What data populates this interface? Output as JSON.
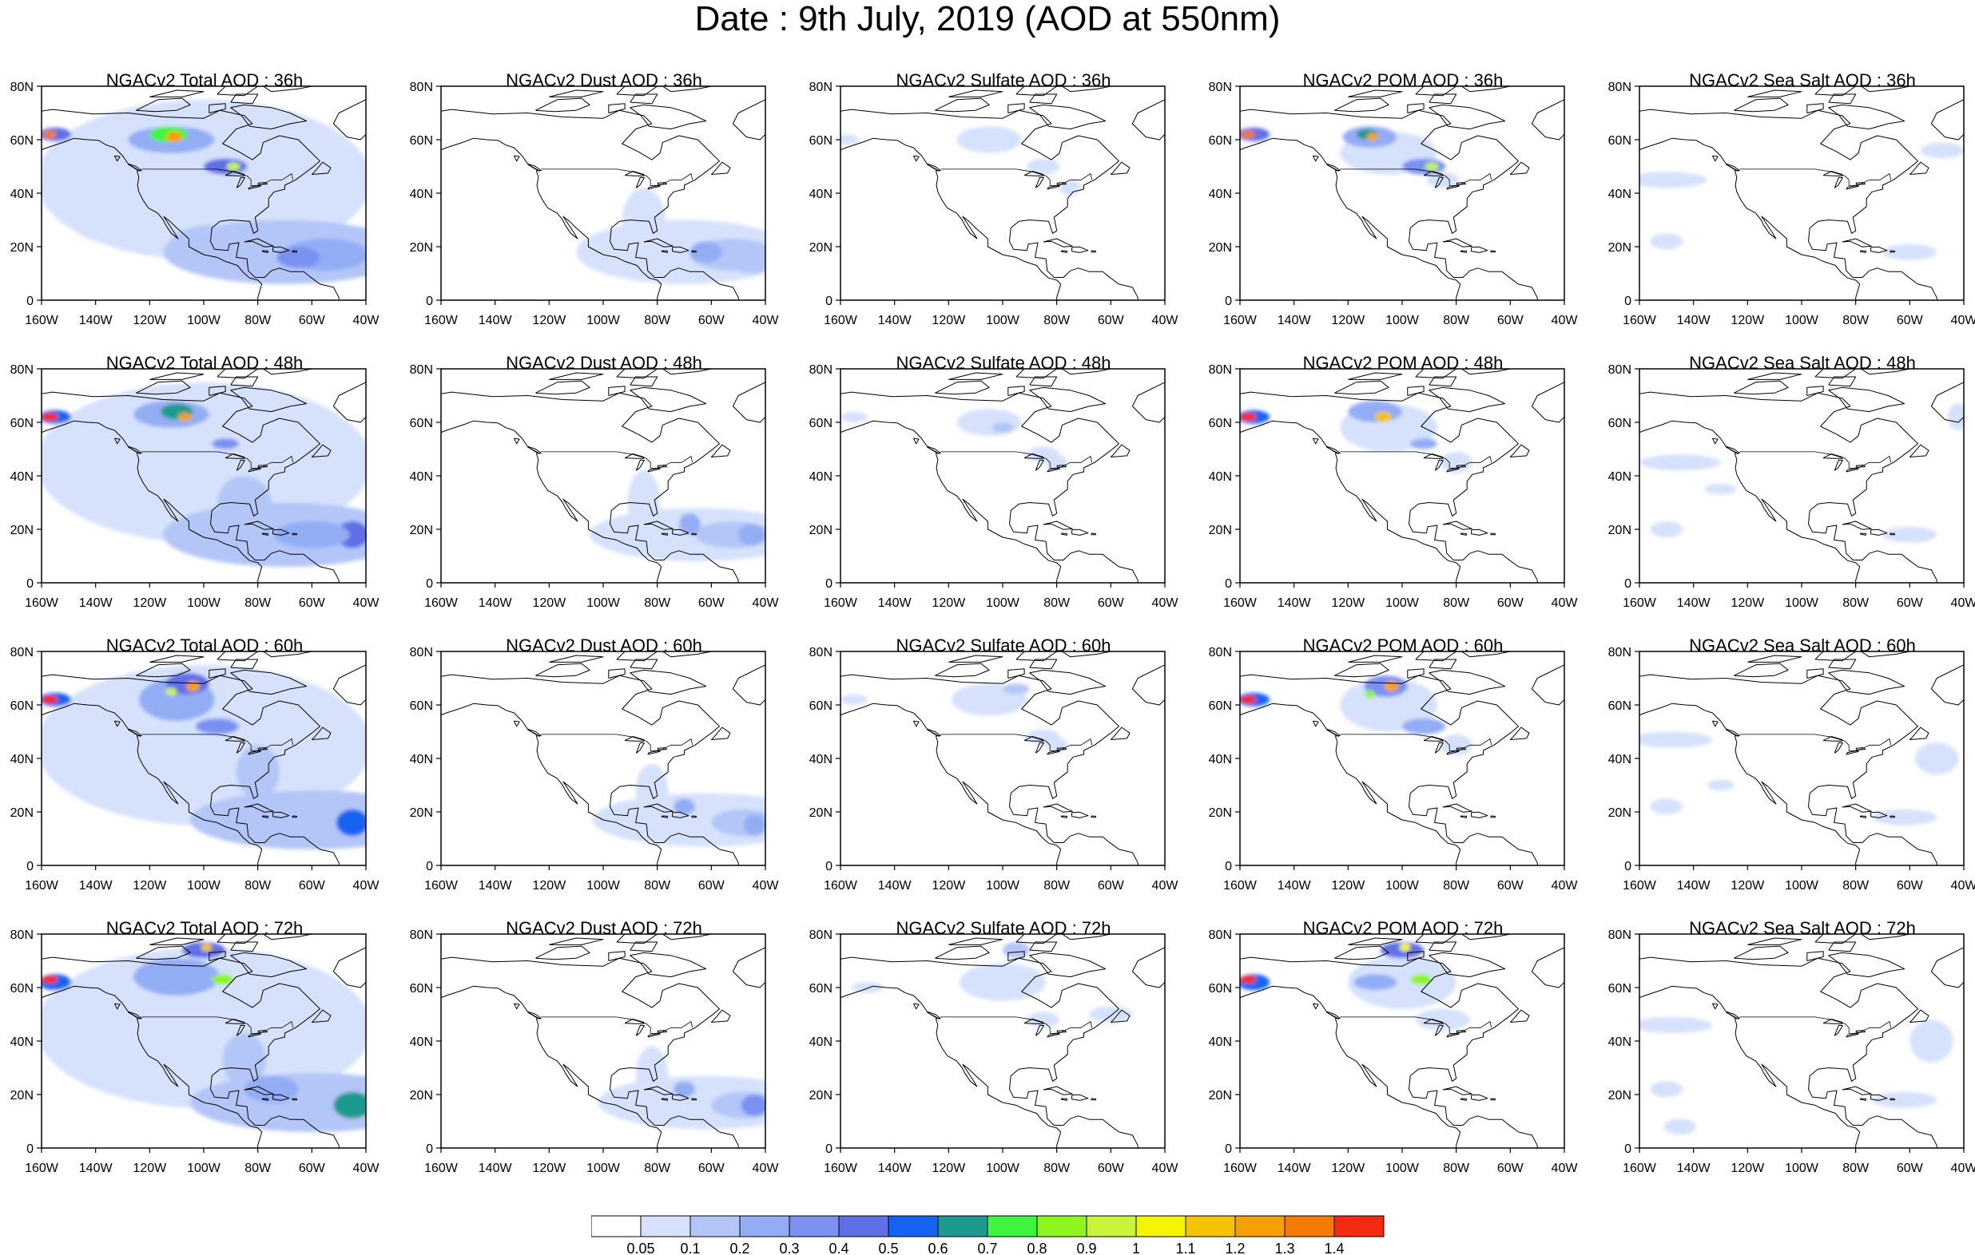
{
  "title": "Date : 9th July, 2019 (AOD at 550nm)",
  "map_axes": {
    "lon_ticks": [
      "160W",
      "140W",
      "120W",
      "100W",
      "80W",
      "60W",
      "40W"
    ],
    "lat_ticks": [
      "0",
      "20N",
      "40N",
      "60N",
      "80N"
    ],
    "lon_range": [
      -160,
      -40
    ],
    "lat_range": [
      0,
      80
    ]
  },
  "panels": [
    [
      "NGACv2 Total AOD : 36h",
      "NGACv2 Dust AOD : 36h",
      "NGACv2 Sulfate AOD : 36h",
      "NGACv2 POM AOD : 36h",
      "NGACv2 Sea Salt AOD : 36h"
    ],
    [
      "NGACv2 Total AOD : 48h",
      "NGACv2 Dust AOD : 48h",
      "NGACv2 Sulfate AOD : 48h",
      "NGACv2 POM AOD : 48h",
      "NGACv2 Sea Salt AOD : 48h"
    ],
    [
      "NGACv2 Total AOD : 60h",
      "NGACv2 Dust AOD : 60h",
      "NGACv2 Sulfate AOD : 60h",
      "NGACv2 POM AOD : 60h",
      "NGACv2 Sea Salt AOD : 60h"
    ],
    [
      "NGACv2 Total AOD : 72h",
      "NGACv2 Dust AOD : 72h",
      "NGACv2 Sulfate AOD : 72h",
      "NGACv2 POM AOD : 72h",
      "NGACv2 Sea Salt  AOD : 72h"
    ]
  ],
  "colorbar": {
    "labels": [
      "0.05",
      "0.1",
      "0.2",
      "0.3",
      "0.4",
      "0.5",
      "0.6",
      "0.7",
      "0.8",
      "0.9",
      "1",
      "1.1",
      "1.2",
      "1.3",
      "1.4"
    ],
    "colors": [
      "#ffffff",
      "#d6e2fc",
      "#b3c6f7",
      "#93adf5",
      "#7a91f2",
      "#5f6fe8",
      "#1463f2",
      "#1c9a8e",
      "#3df53d",
      "#8ef51e",
      "#c8f53c",
      "#f5f500",
      "#f5c300",
      "#f5a000",
      "#f57a00",
      "#f52a10"
    ]
  },
  "colors": {
    "coast": "#000000",
    "frame": "#000000"
  }
}
